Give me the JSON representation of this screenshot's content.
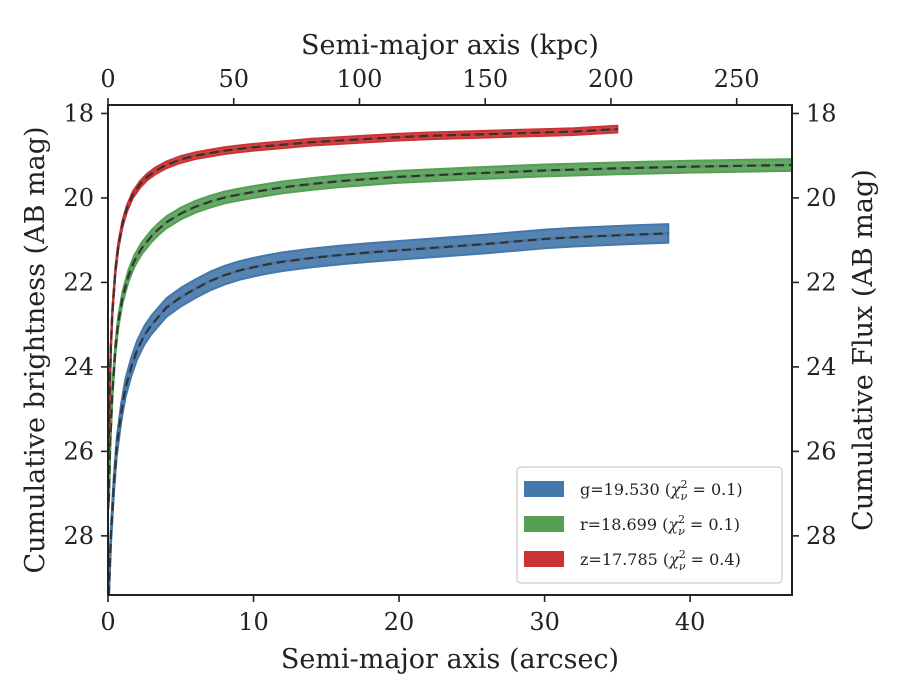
{
  "chart_data": {
    "type": "line",
    "xlabel": "Semi-major axis (arcsec)",
    "ylabel": "Cumulative brightness (AB mag)",
    "x2label": "Semi-major axis (kpc)",
    "y2label": "Cumulative Flux (AB mag)",
    "xlim": [
      0,
      47
    ],
    "x2lim": [
      0,
      272
    ],
    "ylim": [
      29.4,
      17.8
    ],
    "y_inverted": true,
    "xticks": [
      0,
      10,
      20,
      30,
      40
    ],
    "x2ticks": [
      0,
      50,
      100,
      150,
      200,
      250
    ],
    "yticks": [
      18,
      20,
      22,
      24,
      26,
      28
    ],
    "grid": false,
    "legend_position": "lower-right",
    "series": [
      {
        "name": "g=19.530 (χ²ν = 0.1)",
        "legend_main": "g=19.530 (",
        "legend_sub": "ν",
        "legend_sup": "2",
        "legend_rest": " = 0.1)",
        "color": "#4477aa",
        "band_width": 0.22,
        "x": [
          0.05,
          0.2,
          0.4,
          0.6,
          0.9,
          1.2,
          1.6,
          2.0,
          2.5,
          3.0,
          3.5,
          4.0,
          5.0,
          6.0,
          7.0,
          8.0,
          9.0,
          10.0,
          11.0,
          12.0,
          14.0,
          16.0,
          18.0,
          20.0,
          22.0,
          24.0,
          26.0,
          28.0,
          30.0,
          32.0,
          34.0,
          36.0,
          38.5
        ],
        "y": [
          29.4,
          28.0,
          26.8,
          25.9,
          25.1,
          24.5,
          24.0,
          23.6,
          23.25,
          23.0,
          22.8,
          22.6,
          22.35,
          22.15,
          21.97,
          21.83,
          21.72,
          21.64,
          21.57,
          21.51,
          21.42,
          21.35,
          21.29,
          21.24,
          21.19,
          21.14,
          21.09,
          21.03,
          20.97,
          20.93,
          20.9,
          20.87,
          20.84
        ]
      },
      {
        "name": "r=18.699 (χ²ν = 0.1)",
        "legend_main": "r=18.699 (",
        "legend_sub": "ν",
        "legend_sup": "2",
        "legend_rest": " = 0.1)",
        "color": "#55a055",
        "band_width": 0.14,
        "x": [
          0.05,
          0.15,
          0.3,
          0.5,
          0.7,
          1.0,
          1.4,
          1.8,
          2.3,
          3.0,
          3.5,
          4.0,
          5.0,
          6.0,
          7.0,
          8.0,
          9.0,
          10.0,
          12.0,
          14.0,
          16.0,
          18.0,
          20.0,
          25.0,
          30.0,
          35.0,
          40.0,
          47.0
        ],
        "y": [
          27.2,
          25.8,
          24.6,
          23.6,
          22.95,
          22.35,
          21.85,
          21.5,
          21.2,
          20.9,
          20.73,
          20.58,
          20.37,
          20.21,
          20.09,
          19.99,
          19.92,
          19.86,
          19.75,
          19.67,
          19.6,
          19.55,
          19.5,
          19.42,
          19.35,
          19.3,
          19.26,
          19.22
        ]
      },
      {
        "name": "z=17.785 (χ²ν = 0.4)",
        "legend_main": "z=17.785 (",
        "legend_sub": "ν",
        "legend_sup": "2",
        "legend_rest": " = 0.4)",
        "color": "#cc3333",
        "band_width": 0.08,
        "x": [
          0.05,
          0.1,
          0.2,
          0.3,
          0.5,
          0.7,
          1.0,
          1.3,
          1.7,
          2.2,
          2.7,
          3.3,
          4.0,
          5.0,
          6.0,
          7.0,
          8.0,
          9.0,
          10.0,
          12.0,
          14.0,
          16.0,
          18.0,
          20.0,
          22.0,
          25.0,
          28.0,
          30.0,
          32.0,
          35.0
        ],
        "y": [
          26.0,
          24.8,
          23.5,
          22.7,
          21.75,
          21.15,
          20.6,
          20.25,
          19.93,
          19.68,
          19.5,
          19.35,
          19.22,
          19.09,
          19.0,
          18.94,
          18.88,
          18.84,
          18.8,
          18.74,
          18.68,
          18.64,
          18.6,
          18.56,
          18.53,
          18.5,
          18.47,
          18.45,
          18.43,
          18.37
        ]
      }
    ]
  }
}
